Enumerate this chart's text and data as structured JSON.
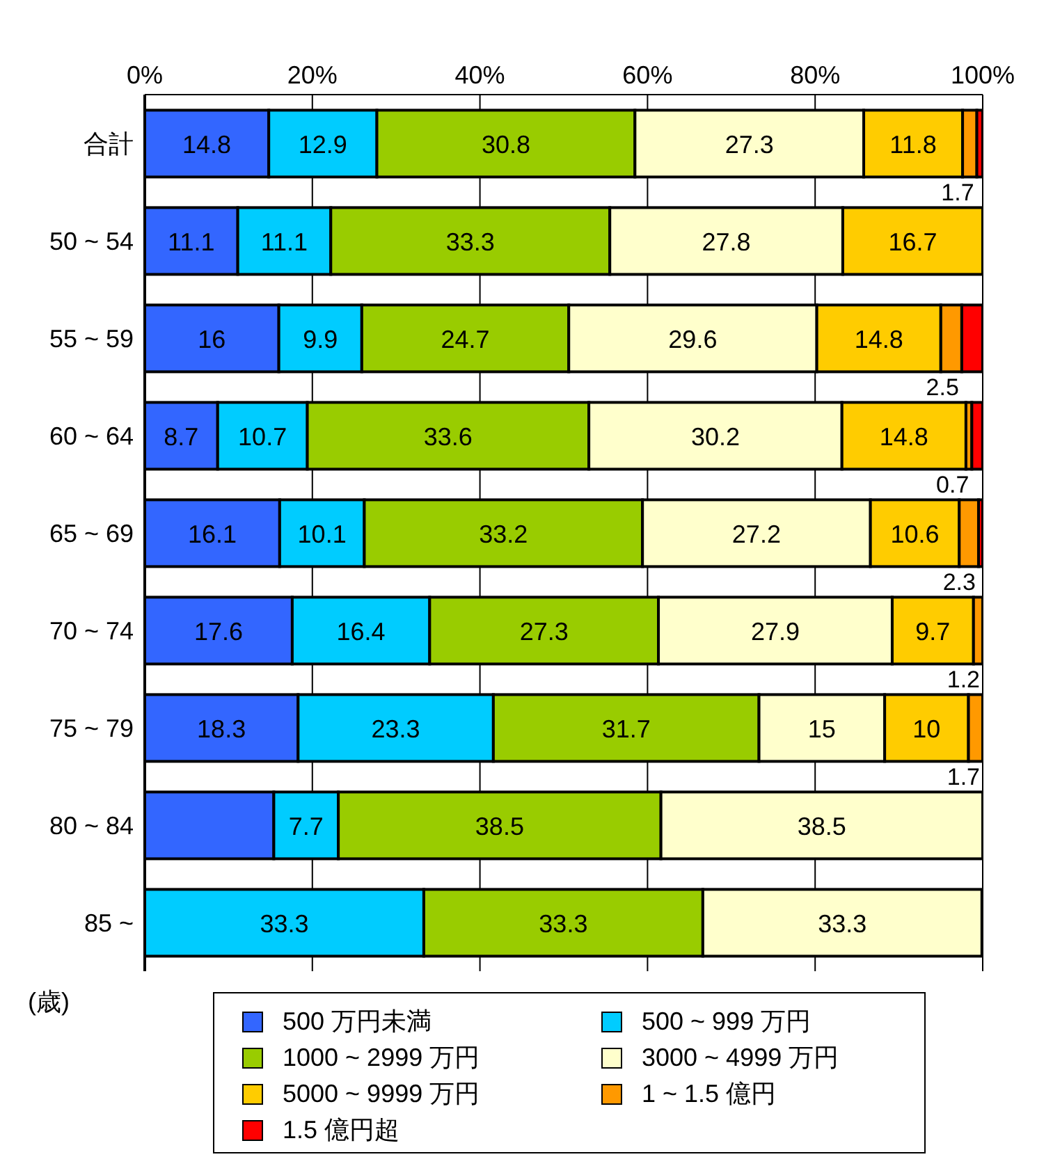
{
  "chart_data": {
    "type": "bar",
    "orientation": "horizontal",
    "stacked": true,
    "categories": [
      "合計",
      "50 ~ 54",
      "55 ~ 59",
      "60 ~ 64",
      "65 ~ 69",
      "70 ~ 74",
      "75 ~ 79",
      "80 ~ 84",
      "85 ~"
    ],
    "series": [
      {
        "name": "500 万円未満",
        "color": "#3366ff",
        "values": [
          14.8,
          11.1,
          16,
          8.7,
          16.1,
          17.6,
          18.3,
          15.4,
          null
        ],
        "value_labels": [
          "14.8",
          "11.1",
          "16",
          "8.7",
          "16.1",
          "17.6",
          "18.3",
          null,
          null
        ]
      },
      {
        "name": "500 ~ 999 万円",
        "color": "#00ccff",
        "values": [
          12.9,
          11.1,
          9.9,
          10.7,
          10.1,
          16.4,
          23.3,
          7.7,
          33.3
        ],
        "value_labels": [
          "12.9",
          "11.1",
          "9.9",
          "10.7",
          "10.1",
          "16.4",
          "23.3",
          "7.7",
          "33.3"
        ]
      },
      {
        "name": "1000 ~ 2999 万円",
        "color": "#99cc00",
        "values": [
          30.8,
          33.3,
          24.7,
          33.6,
          33.2,
          27.3,
          31.7,
          38.5,
          33.3
        ],
        "value_labels": [
          "30.8",
          "33.3",
          "24.7",
          "33.6",
          "33.2",
          "27.3",
          "31.7",
          "38.5",
          "33.3"
        ]
      },
      {
        "name": "3000 ~ 4999 万円",
        "color": "#ffffcc",
        "values": [
          27.3,
          27.8,
          29.6,
          30.2,
          27.2,
          27.9,
          15,
          38.5,
          33.3
        ],
        "value_labels": [
          "27.3",
          "27.8",
          "29.6",
          "30.2",
          "27.2",
          "27.9",
          "15",
          "38.5",
          "33.3"
        ]
      },
      {
        "name": "5000 ~ 9999 万円",
        "color": "#ffcc00",
        "values": [
          11.8,
          16.7,
          14.8,
          14.8,
          10.6,
          9.7,
          10,
          null,
          null
        ],
        "value_labels": [
          "11.8",
          "16.7",
          "14.8",
          "14.8",
          "10.6",
          "9.7",
          "10",
          null,
          null
        ]
      },
      {
        "name": "1 ~ 1.5 億円",
        "color": "#ff9900",
        "values": [
          1.7,
          null,
          2.5,
          0.7,
          2.3,
          1.2,
          1.7,
          null,
          null
        ],
        "value_labels": [
          "1.7",
          null,
          "2.5",
          "0.7",
          "2.3",
          "1.2",
          "1.7",
          null,
          null
        ]
      },
      {
        "name": "1.5 億円超",
        "color": "#ff0000",
        "values": [
          0.7,
          null,
          2.5,
          1.3,
          0.5,
          null,
          null,
          null,
          null
        ],
        "value_labels": [
          null,
          null,
          null,
          null,
          null,
          null,
          null,
          null,
          null
        ]
      }
    ],
    "xlim": [
      0,
      100
    ],
    "xticks": [
      {
        "value": 0,
        "label": "0%"
      },
      {
        "value": 20,
        "label": "20%"
      },
      {
        "value": 40,
        "label": "40%"
      },
      {
        "value": 60,
        "label": "60%"
      },
      {
        "value": 80,
        "label": "80%"
      },
      {
        "value": 100,
        "label": "100%"
      }
    ],
    "grid": "x",
    "legend": "bottom",
    "annotations": [
      "(歳)"
    ]
  }
}
